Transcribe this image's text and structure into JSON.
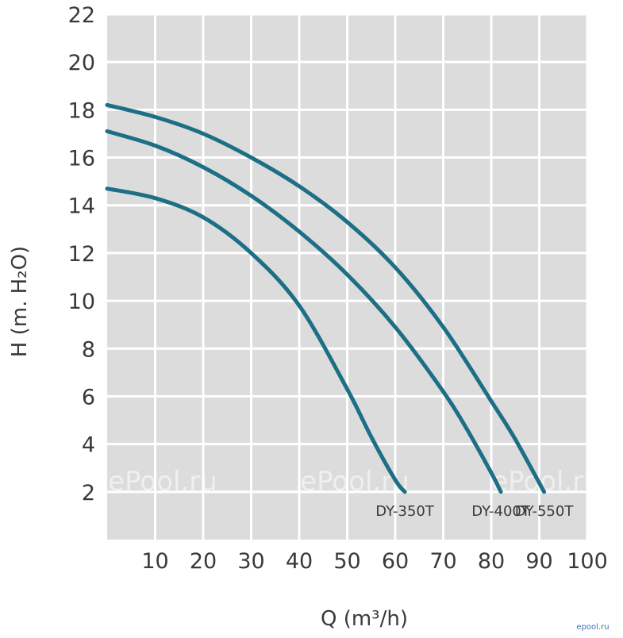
{
  "chart_data": {
    "type": "line",
    "title": "",
    "xlabel": "Q (m³/h)",
    "ylabel": "H (m. H₂O)",
    "xlim": [
      0,
      100
    ],
    "ylim": [
      0,
      22
    ],
    "xticks": [
      10,
      20,
      30,
      40,
      50,
      60,
      70,
      80,
      90,
      100
    ],
    "yticks": [
      2,
      4,
      6,
      8,
      10,
      12,
      14,
      16,
      18,
      20,
      22
    ],
    "grid": true,
    "series": [
      {
        "name": "DY-350T",
        "x": [
          0,
          10,
          20,
          30,
          40,
          50,
          55,
          60,
          62
        ],
        "y": [
          14.7,
          14.3,
          13.5,
          12.0,
          9.8,
          6.3,
          4.3,
          2.5,
          2.0
        ]
      },
      {
        "name": "DY-400T",
        "x": [
          0,
          10,
          20,
          30,
          40,
          50,
          60,
          70,
          75,
          80,
          82
        ],
        "y": [
          17.1,
          16.5,
          15.6,
          14.4,
          12.9,
          11.1,
          8.9,
          6.2,
          4.6,
          2.8,
          2.0
        ]
      },
      {
        "name": "DY-550T",
        "x": [
          0,
          10,
          20,
          30,
          40,
          50,
          60,
          70,
          80,
          85,
          91
        ],
        "y": [
          18.2,
          17.7,
          17.0,
          16.0,
          14.8,
          13.3,
          11.4,
          8.9,
          5.8,
          4.2,
          2.0
        ]
      }
    ],
    "colors": {
      "plot_background": "#dcdcdc",
      "grid": "#ffffff",
      "line": "#1d6f86",
      "text": "#3a3a3a"
    },
    "watermark": "ePool.ru"
  },
  "footer": {
    "logo_text": "epool.ru"
  }
}
